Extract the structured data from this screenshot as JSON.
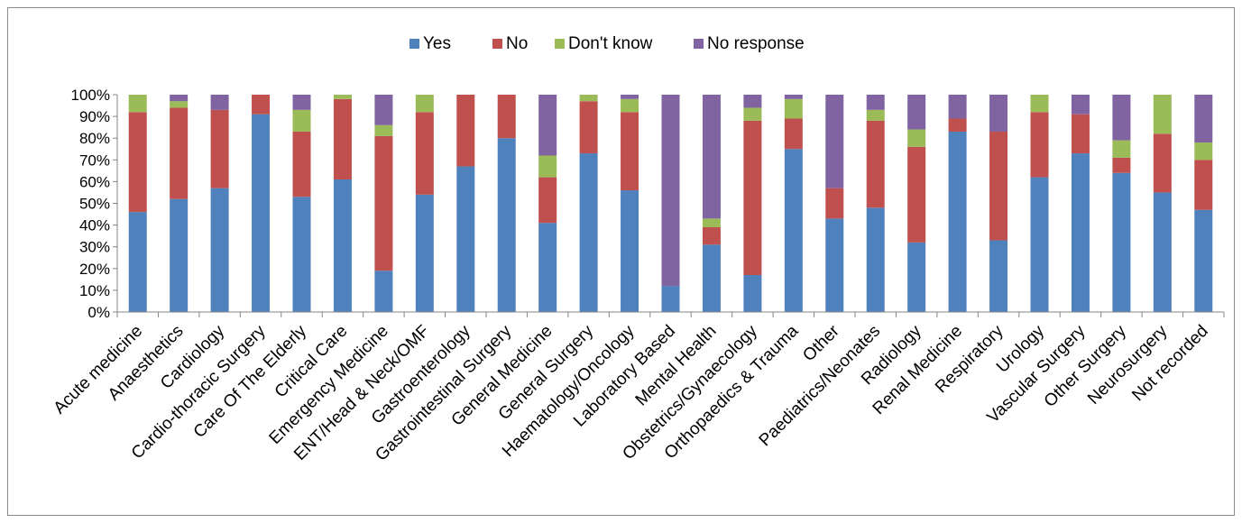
{
  "chart_data": {
    "type": "bar",
    "stacked": true,
    "percent": true,
    "categories": [
      "Acute medicine",
      "Anaesthetics",
      "Cardiology",
      "Cardio-thoracic Surgery",
      "Care Of The Elderly",
      "Critical Care",
      "Emergency Medicine",
      "ENT/Head & Neck/OMF",
      "Gastroenterology",
      "Gastrointestinal Surgery",
      "General Medicine",
      "General Surgery",
      "Haematology/Oncology",
      "Laboratory Based",
      "Mental Health",
      "Obstetrics/Gynaecology",
      "Orthopaedics  & Trauma",
      "Other",
      "Paediatrics/Neonates",
      "Radiology",
      "Renal Medicine",
      "Respiratory",
      "Urology",
      "Vascular Surgery",
      "Other Surgery",
      "Neurosurgery",
      "Not recorded"
    ],
    "series": [
      {
        "name": "Yes",
        "color": "#4F81BD",
        "values": [
          46,
          52,
          57,
          91,
          53,
          61,
          19,
          54,
          67,
          80,
          41,
          73,
          56,
          12,
          31,
          17,
          75,
          43,
          48,
          32,
          83,
          33,
          62,
          73,
          64,
          55,
          47
        ]
      },
      {
        "name": "No",
        "color": "#C0504D",
        "values": [
          46,
          42,
          36,
          9,
          30,
          37,
          62,
          38,
          33,
          20,
          21,
          24,
          36,
          0,
          8,
          71,
          14,
          14,
          40,
          44,
          6,
          50,
          30,
          18,
          7,
          27,
          23
        ]
      },
      {
        "name": "Don't know",
        "color": "#9BBB59",
        "values": [
          8,
          3,
          0,
          0,
          10,
          2,
          5,
          8,
          0,
          0,
          10,
          3,
          6,
          0,
          4,
          6,
          9,
          0,
          5,
          8,
          0,
          0,
          8,
          0,
          8,
          18,
          8
        ]
      },
      {
        "name": "No response",
        "color": "#8064A2",
        "values": [
          0,
          3,
          7,
          0,
          7,
          0,
          14,
          0,
          0,
          0,
          28,
          0,
          2,
          88,
          57,
          6,
          2,
          43,
          7,
          16,
          11,
          17,
          0,
          9,
          21,
          0,
          22
        ]
      }
    ],
    "ylim": [
      0,
      100
    ],
    "yticks": [
      "0%",
      "10%",
      "20%",
      "30%",
      "40%",
      "50%",
      "60%",
      "70%",
      "80%",
      "90%",
      "100%"
    ],
    "legend_position": "top",
    "grid": false
  }
}
